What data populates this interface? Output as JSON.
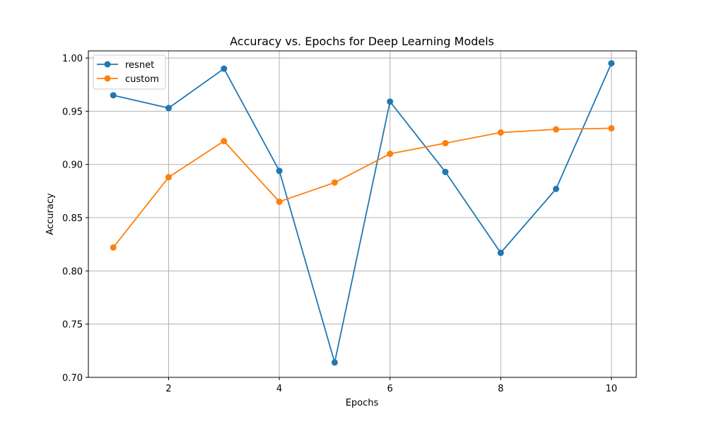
{
  "chart_data": {
    "type": "line",
    "title": "Accuracy vs. Epochs for Deep Learning Models",
    "xlabel": "Epochs",
    "ylabel": "Accuracy",
    "x": [
      1,
      2,
      3,
      4,
      5,
      6,
      7,
      8,
      9,
      10
    ],
    "xlim": [
      0.55,
      10.45
    ],
    "ylim": [
      0.7,
      1.0067
    ],
    "xticks": [
      2,
      4,
      6,
      8,
      10
    ],
    "xtick_labels": [
      "2",
      "4",
      "6",
      "8",
      "10"
    ],
    "yticks": [
      0.7,
      0.75,
      0.8,
      0.85,
      0.9,
      0.95,
      1.0
    ],
    "ytick_labels": [
      "0.70",
      "0.75",
      "0.80",
      "0.85",
      "0.90",
      "0.95",
      "1.00"
    ],
    "grid": true,
    "legend_position": "top-left",
    "series": [
      {
        "name": "resnet",
        "color": "#1f77b4",
        "values": [
          0.965,
          0.953,
          0.99,
          0.894,
          0.714,
          0.959,
          0.893,
          0.817,
          0.877,
          0.995
        ]
      },
      {
        "name": "custom",
        "color": "#ff7f0e",
        "values": [
          0.822,
          0.888,
          0.922,
          0.865,
          0.883,
          0.91,
          0.92,
          0.93,
          0.933,
          0.934
        ]
      }
    ]
  }
}
